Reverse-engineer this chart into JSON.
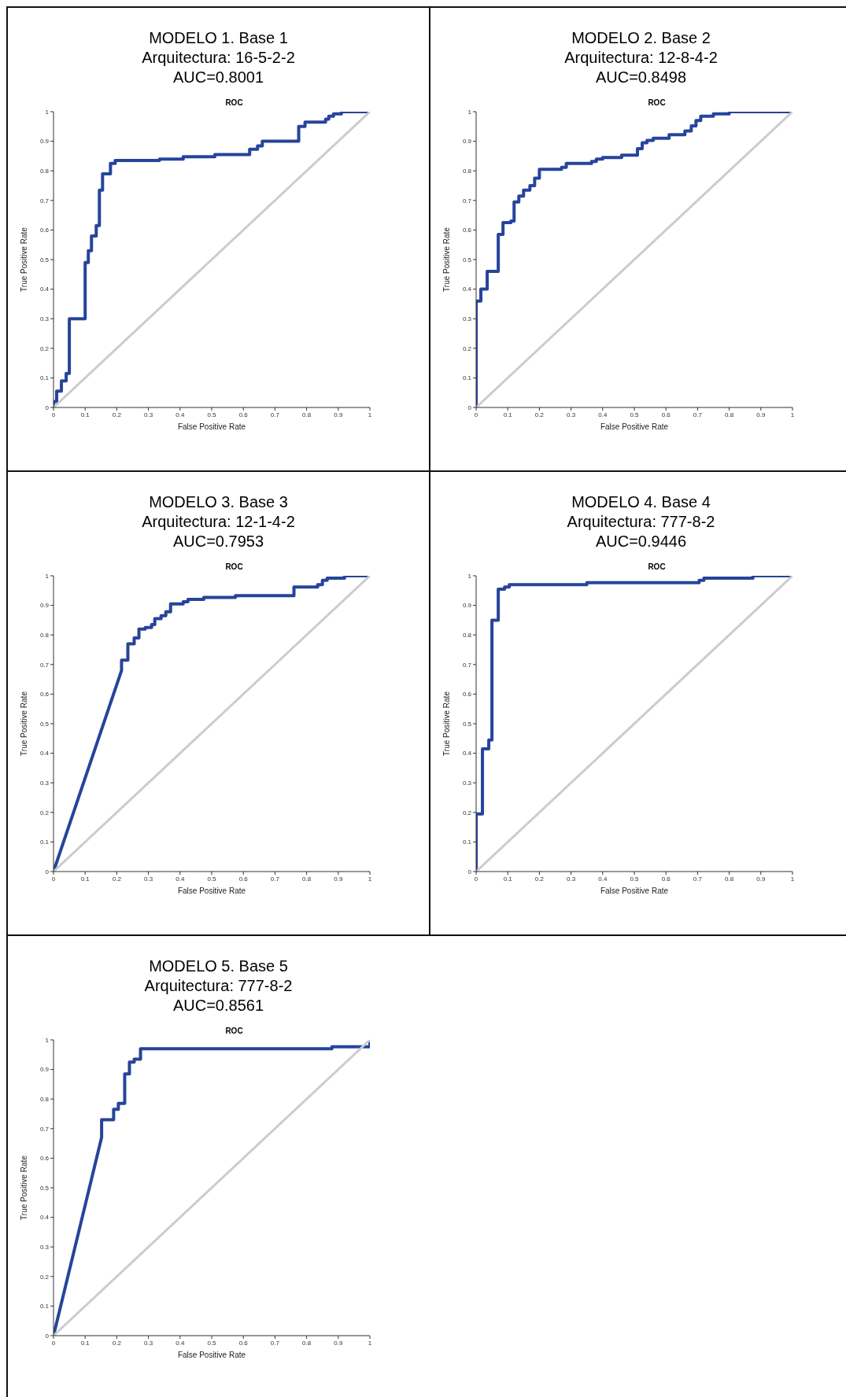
{
  "chart_data": [
    {
      "type": "line",
      "title": "MODELO 1. Base 1",
      "subtitle": "Arquitectura: 16-5-2-2",
      "annotations": [
        "AUC=0.8001",
        "ROC"
      ],
      "xlabel": "False Positive Rate",
      "ylabel": "True Positive Rate",
      "xlim": [
        0,
        1
      ],
      "ylim": [
        0,
        1
      ],
      "xticks": [
        0,
        0.1,
        0.2,
        0.3,
        0.4,
        0.5,
        0.6,
        0.7,
        0.8,
        0.9,
        1
      ],
      "yticks": [
        0,
        0.1,
        0.2,
        0.3,
        0.4,
        0.5,
        0.6,
        0.7,
        0.8,
        0.9,
        1
      ],
      "series": [
        {
          "color": "#26449a",
          "x": [
            0,
            0,
            0.01,
            0.01,
            0.025,
            0.025,
            0.04,
            0.04,
            0.05,
            0.05,
            0.1,
            0.1,
            0.11,
            0.11,
            0.12,
            0.12,
            0.135,
            0.135,
            0.145,
            0.145,
            0.155,
            0.155,
            0.18,
            0.18,
            0.195,
            0.195,
            0.335,
            0.335,
            0.41,
            0.41,
            0.51,
            0.51,
            0.62,
            0.62,
            0.645,
            0.645,
            0.66,
            0.66,
            0.775,
            0.775,
            0.795,
            0.795,
            0.86,
            0.86,
            0.87,
            0.87,
            0.885,
            0.885,
            0.91,
            0.91,
            1
          ],
          "values": [
            0,
            0.02,
            0.02,
            0.055,
            0.055,
            0.09,
            0.09,
            0.115,
            0.115,
            0.3,
            0.3,
            0.49,
            0.49,
            0.53,
            0.53,
            0.58,
            0.58,
            0.615,
            0.615,
            0.735,
            0.735,
            0.79,
            0.79,
            0.825,
            0.825,
            0.835,
            0.835,
            0.84,
            0.84,
            0.848,
            0.848,
            0.855,
            0.855,
            0.873,
            0.873,
            0.884,
            0.884,
            0.9,
            0.9,
            0.95,
            0.95,
            0.965,
            0.965,
            0.975,
            0.975,
            0.985,
            0.985,
            0.993,
            0.993,
            1,
            1
          ]
        },
        {
          "color": "#cccccc",
          "x": [
            0,
            1
          ],
          "values": [
            0,
            1
          ]
        }
      ]
    },
    {
      "type": "line",
      "title": "MODELO 2. Base 2",
      "subtitle": "Arquitectura: 12-8-4-2",
      "annotations": [
        "AUC=0.8498",
        "ROC"
      ],
      "xlabel": "False Positive Rate",
      "ylabel": "True Positive Rate",
      "xlim": [
        0,
        1
      ],
      "ylim": [
        0,
        1
      ],
      "xticks": [
        0,
        0.1,
        0.2,
        0.3,
        0.4,
        0.5,
        0.6,
        0.7,
        0.8,
        0.9,
        1
      ],
      "yticks": [
        0,
        0.1,
        0.2,
        0.3,
        0.4,
        0.5,
        0.6,
        0.7,
        0.8,
        0.9,
        1
      ],
      "series": [
        {
          "color": "#26449a",
          "x": [
            0,
            0,
            0.015,
            0.015,
            0.035,
            0.035,
            0.07,
            0.07,
            0.085,
            0.085,
            0.11,
            0.11,
            0.12,
            0.12,
            0.135,
            0.135,
            0.15,
            0.15,
            0.17,
            0.17,
            0.185,
            0.185,
            0.2,
            0.2,
            0.27,
            0.27,
            0.285,
            0.285,
            0.365,
            0.365,
            0.38,
            0.38,
            0.4,
            0.4,
            0.46,
            0.46,
            0.51,
            0.51,
            0.525,
            0.525,
            0.54,
            0.54,
            0.56,
            0.56,
            0.61,
            0.61,
            0.66,
            0.66,
            0.68,
            0.68,
            0.695,
            0.695,
            0.71,
            0.71,
            0.75,
            0.75,
            0.8,
            0.8,
            1
          ],
          "values": [
            0,
            0.36,
            0.36,
            0.4,
            0.4,
            0.46,
            0.46,
            0.585,
            0.585,
            0.625,
            0.625,
            0.63,
            0.63,
            0.695,
            0.695,
            0.715,
            0.715,
            0.735,
            0.735,
            0.75,
            0.75,
            0.775,
            0.775,
            0.805,
            0.805,
            0.812,
            0.812,
            0.825,
            0.825,
            0.832,
            0.832,
            0.84,
            0.84,
            0.845,
            0.845,
            0.853,
            0.853,
            0.875,
            0.875,
            0.895,
            0.895,
            0.903,
            0.903,
            0.91,
            0.91,
            0.922,
            0.922,
            0.935,
            0.935,
            0.952,
            0.952,
            0.97,
            0.97,
            0.985,
            0.985,
            0.993,
            0.993,
            1,
            1
          ]
        },
        {
          "color": "#cccccc",
          "x": [
            0,
            1
          ],
          "values": [
            0,
            1
          ]
        }
      ]
    },
    {
      "type": "line",
      "title": "MODELO 3. Base 3",
      "subtitle": "Arquitectura: 12-1-4-2",
      "annotations": [
        "AUC=0.7953",
        "ROC"
      ],
      "xlabel": "False Positive Rate",
      "ylabel": "True Positive Rate",
      "xlim": [
        0,
        1
      ],
      "ylim": [
        0,
        1
      ],
      "xticks": [
        0,
        0.1,
        0.2,
        0.3,
        0.4,
        0.5,
        0.6,
        0.7,
        0.8,
        0.9,
        1
      ],
      "yticks": [
        0,
        0.1,
        0.2,
        0.3,
        0.4,
        0.5,
        0.6,
        0.7,
        0.8,
        0.9,
        1
      ],
      "series": [
        {
          "color": "#26449a",
          "x": [
            0,
            0.215,
            0.215,
            0.235,
            0.235,
            0.255,
            0.255,
            0.27,
            0.27,
            0.29,
            0.29,
            0.31,
            0.31,
            0.32,
            0.32,
            0.34,
            0.34,
            0.355,
            0.355,
            0.37,
            0.37,
            0.41,
            0.41,
            0.425,
            0.425,
            0.475,
            0.475,
            0.575,
            0.575,
            0.76,
            0.76,
            0.835,
            0.835,
            0.85,
            0.85,
            0.865,
            0.865,
            0.92,
            0.92,
            1
          ],
          "values": [
            0,
            0.68,
            0.715,
            0.715,
            0.77,
            0.77,
            0.79,
            0.79,
            0.82,
            0.82,
            0.825,
            0.825,
            0.835,
            0.835,
            0.855,
            0.855,
            0.865,
            0.865,
            0.878,
            0.878,
            0.905,
            0.905,
            0.912,
            0.912,
            0.92,
            0.92,
            0.927,
            0.927,
            0.933,
            0.933,
            0.962,
            0.962,
            0.97,
            0.97,
            0.985,
            0.985,
            0.992,
            0.992,
            1,
            1
          ]
        },
        {
          "color": "#cccccc",
          "x": [
            0,
            1
          ],
          "values": [
            0,
            1
          ]
        }
      ]
    },
    {
      "type": "line",
      "title": "MODELO 4. Base 4",
      "subtitle": "Arquitectura: 777-8-2",
      "annotations": [
        "AUC=0.9446",
        "ROC"
      ],
      "xlabel": "False Positive Rate",
      "ylabel": "True Positive Rate",
      "xlim": [
        0,
        1
      ],
      "ylim": [
        0,
        1
      ],
      "xticks": [
        0,
        0.1,
        0.2,
        0.3,
        0.4,
        0.5,
        0.6,
        0.7,
        0.8,
        0.9,
        1
      ],
      "yticks": [
        0,
        0.1,
        0.2,
        0.3,
        0.4,
        0.5,
        0.6,
        0.7,
        0.8,
        0.9,
        1
      ],
      "series": [
        {
          "color": "#26449a",
          "x": [
            0,
            0,
            0.02,
            0.02,
            0.04,
            0.04,
            0.05,
            0.05,
            0.07,
            0.07,
            0.09,
            0.09,
            0.105,
            0.105,
            0.35,
            0.35,
            0.705,
            0.705,
            0.72,
            0.72,
            0.875,
            0.875,
            1
          ],
          "values": [
            0,
            0.195,
            0.195,
            0.415,
            0.415,
            0.445,
            0.445,
            0.85,
            0.85,
            0.955,
            0.955,
            0.962,
            0.962,
            0.97,
            0.97,
            0.977,
            0.977,
            0.985,
            0.985,
            0.992,
            0.992,
            1,
            1
          ]
        },
        {
          "color": "#cccccc",
          "x": [
            0,
            1
          ],
          "values": [
            0,
            1
          ]
        }
      ]
    },
    {
      "type": "line",
      "title": "MODELO 5. Base 5",
      "subtitle": "Arquitectura: 777-8-2",
      "annotations": [
        "AUC=0.8561",
        "ROC"
      ],
      "xlabel": "False Positive Rate",
      "ylabel": "True Positive Rate",
      "xlim": [
        0,
        1
      ],
      "ylim": [
        0,
        1
      ],
      "xticks": [
        0,
        0.1,
        0.2,
        0.3,
        0.4,
        0.5,
        0.6,
        0.7,
        0.8,
        0.9,
        1
      ],
      "yticks": [
        0,
        0.1,
        0.2,
        0.3,
        0.4,
        0.5,
        0.6,
        0.7,
        0.8,
        0.9,
        1
      ],
      "series": [
        {
          "color": "#26449a",
          "x": [
            0,
            0.152,
            0.152,
            0.19,
            0.19,
            0.205,
            0.205,
            0.225,
            0.225,
            0.24,
            0.24,
            0.255,
            0.255,
            0.275,
            0.275,
            0.88,
            0.88,
            1,
            1
          ],
          "values": [
            0,
            0.67,
            0.73,
            0.73,
            0.765,
            0.765,
            0.785,
            0.785,
            0.885,
            0.885,
            0.925,
            0.925,
            0.935,
            0.935,
            0.97,
            0.97,
            0.977,
            0.977,
            1
          ]
        },
        {
          "color": "#cccccc",
          "x": [
            0,
            1
          ],
          "values": [
            0,
            1
          ]
        }
      ]
    }
  ]
}
